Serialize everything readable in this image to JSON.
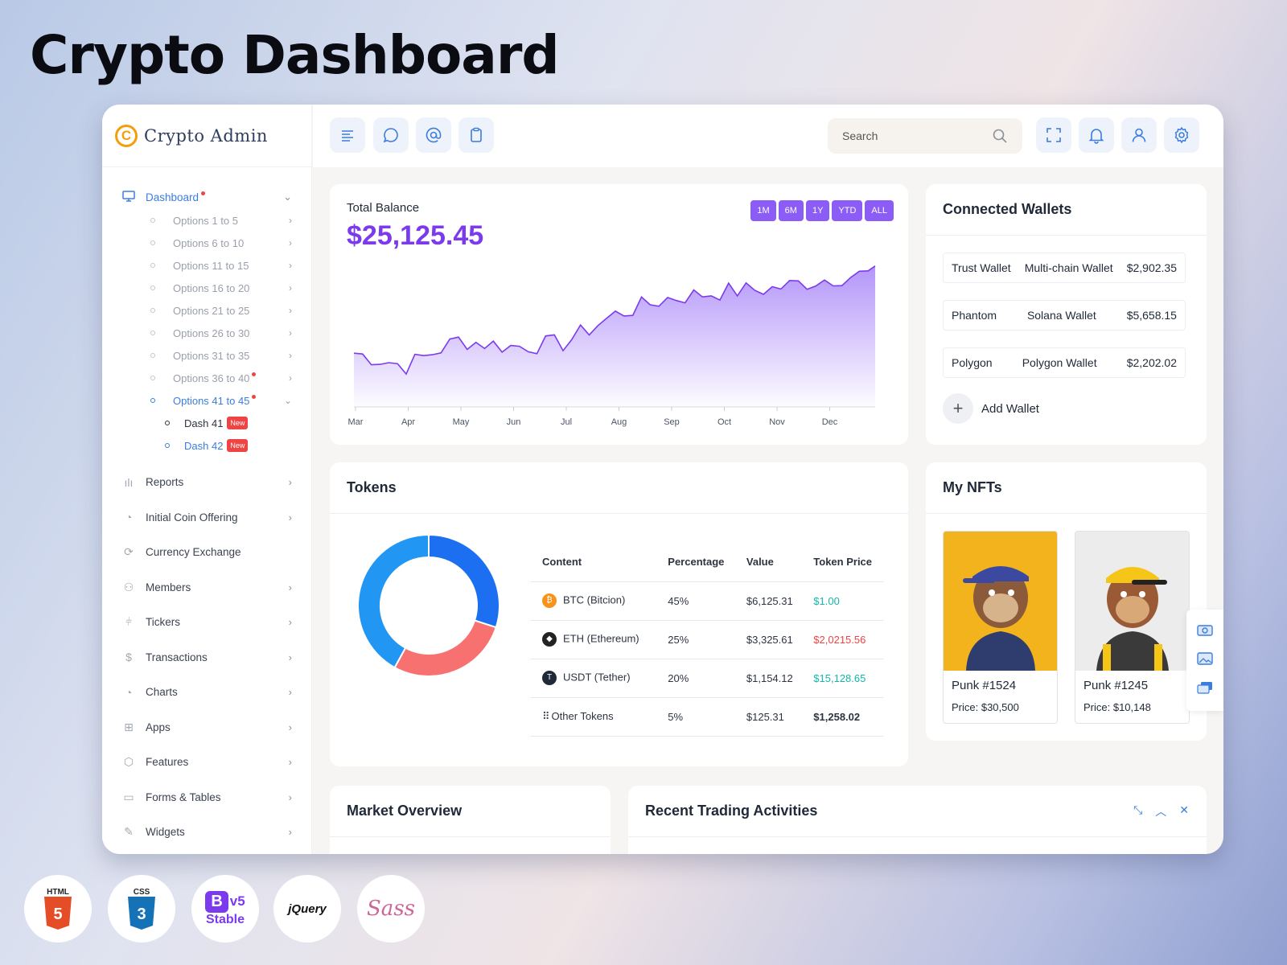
{
  "hero_title": "Crypto Dashboard",
  "brand": {
    "logo_letter": "C",
    "name": "Crypto Admin"
  },
  "sidebar": {
    "dashboard_label": "Dashboard",
    "options": [
      {
        "label": "Options 1 to 5"
      },
      {
        "label": "Options 6 to 10"
      },
      {
        "label": "Options 11 to 15"
      },
      {
        "label": "Options 16 to 20"
      },
      {
        "label": "Options 21 to 25"
      },
      {
        "label": "Options 26 to 30"
      },
      {
        "label": "Options 31 to 35"
      },
      {
        "label": "Options 36 to 40"
      },
      {
        "label": "Options 41 to 45"
      }
    ],
    "dash_items": [
      {
        "label": "Dash 41",
        "badge": "New"
      },
      {
        "label": "Dash 42",
        "badge": "New"
      }
    ],
    "items": [
      {
        "label": "Reports"
      },
      {
        "label": "Initial Coin Offering"
      },
      {
        "label": "Currency Exchange"
      },
      {
        "label": "Members"
      },
      {
        "label": "Tickers"
      },
      {
        "label": "Transactions"
      },
      {
        "label": "Charts"
      },
      {
        "label": "Apps"
      },
      {
        "label": "Features"
      },
      {
        "label": "Forms & Tables"
      },
      {
        "label": "Widgets"
      }
    ]
  },
  "topbar": {
    "search_placeholder": "Search"
  },
  "balance": {
    "title": "Total Balance",
    "amount": "$25,125.45",
    "ranges": [
      "1M",
      "6M",
      "1Y",
      "YTD",
      "ALL"
    ]
  },
  "chart_data": {
    "type": "area",
    "x": [
      "Mar",
      "Apr",
      "May",
      "Jun",
      "Jul",
      "Aug",
      "Sep",
      "Oct",
      "Nov",
      "Dec"
    ],
    "values": [
      10,
      6,
      14,
      12,
      13,
      22,
      27,
      29,
      30,
      33
    ],
    "color": "#7c3aed"
  },
  "tokens": {
    "title": "Tokens",
    "columns": [
      "Content",
      "Percentage",
      "Value",
      "Token Price"
    ],
    "rows": [
      {
        "icon": "bitcoin-icon",
        "name": "BTC (Bitcion)",
        "pct": "45%",
        "value": "$6,125.31",
        "price": "$1.00",
        "price_color": "green"
      },
      {
        "icon": "ethereum-icon",
        "name": "ETH (Ethereum)",
        "pct": "25%",
        "value": "$3,325.61",
        "price": "$2,0215.56",
        "price_color": "red"
      },
      {
        "icon": "tether-icon",
        "name": "USDT (Tether)",
        "pct": "20%",
        "value": "$1,154.12",
        "price": "$15,128.65",
        "price_color": "green"
      },
      {
        "icon": "grid-icon",
        "name": "Other Tokens",
        "pct": "5%",
        "value": "$125.31",
        "price": "$1,258.02",
        "price_color": "bold"
      }
    ],
    "donut": [
      {
        "share": 0.3,
        "color": "#1d6ff2"
      },
      {
        "share": 0.28,
        "color": "#f87171"
      },
      {
        "share": 0.42,
        "color": "#2196f3"
      }
    ]
  },
  "wallets": {
    "title": "Connected Wallets",
    "rows": [
      {
        "name": "Trust Wallet",
        "type": "Multi-chain Wallet",
        "amount": "$2,902.35"
      },
      {
        "name": "Phantom",
        "type": "Solana Wallet",
        "amount": "$5,658.15"
      },
      {
        "name": "Polygon",
        "type": "Polygon Wallet",
        "amount": "$2,202.02"
      }
    ],
    "add_label": "Add Wallet"
  },
  "nfts": {
    "title": "My NFTs",
    "items": [
      {
        "name": "Punk #1524",
        "price": "Price: $30,500",
        "bg": "#f2b31d"
      },
      {
        "name": "Punk #1245",
        "price": "Price: $10,148",
        "bg": "#ececec"
      }
    ]
  },
  "market": {
    "title": "Market Overview"
  },
  "trading": {
    "title": "Recent Trading Activities"
  },
  "tech_badges": [
    "HTML",
    "5",
    "CSS",
    "3",
    "B",
    "v5",
    "Stable",
    "jQuery",
    "Sass"
  ]
}
